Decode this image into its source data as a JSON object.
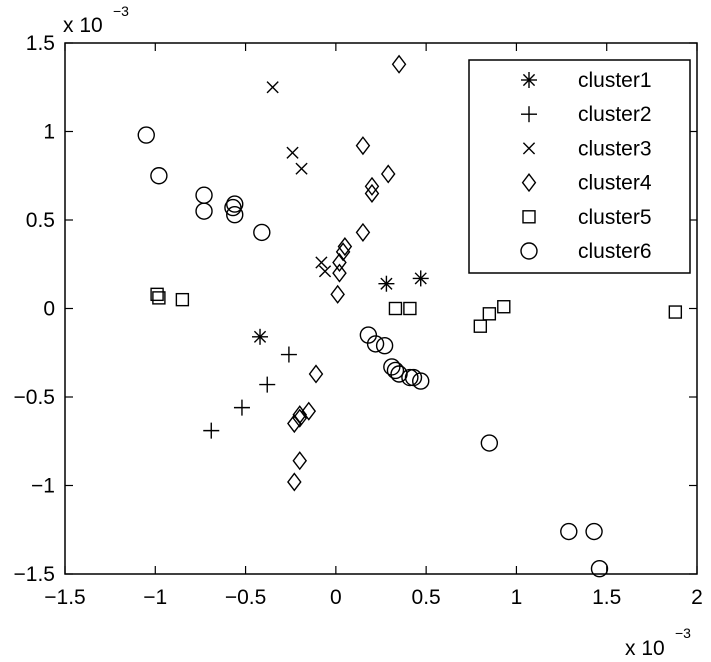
{
  "chart_data": {
    "type": "scatter",
    "title": "",
    "xlabel": "",
    "ylabel": "",
    "x_multiplier": {
      "base": "x 10",
      "exponent": "−3"
    },
    "y_multiplier": {
      "base": "x 10",
      "exponent": "−3"
    },
    "xlim": [
      -1.5,
      2
    ],
    "ylim": [
      -1.5,
      1.5
    ],
    "xticks": [
      -1.5,
      -1,
      -0.5,
      0,
      0.5,
      1,
      1.5,
      2
    ],
    "xtick_labels": [
      "−1.5",
      "−1",
      "−0.5",
      "0",
      "0.5",
      "1",
      "1.5",
      "2"
    ],
    "yticks": [
      -1.5,
      -1,
      -0.5,
      0,
      0.5,
      1,
      1.5
    ],
    "ytick_labels": [
      "−1.5",
      "−1",
      "−0.5",
      "0",
      "0.5",
      "1",
      "1.5"
    ],
    "grid": false,
    "legend_position": "top-right",
    "series": [
      {
        "name": "cluster1",
        "marker": "asterisk",
        "points": [
          [
            -0.42,
            -0.16
          ],
          [
            0.28,
            0.14
          ],
          [
            0.47,
            0.17
          ]
        ]
      },
      {
        "name": "cluster2",
        "marker": "plus",
        "points": [
          [
            -0.26,
            -0.26
          ],
          [
            -0.38,
            -0.43
          ],
          [
            -0.52,
            -0.56
          ],
          [
            -0.69,
            -0.69
          ]
        ]
      },
      {
        "name": "cluster3",
        "marker": "x",
        "points": [
          [
            -0.35,
            1.25
          ],
          [
            -0.24,
            0.88
          ],
          [
            -0.19,
            0.79
          ],
          [
            -0.08,
            0.26
          ],
          [
            -0.06,
            0.21
          ]
        ]
      },
      {
        "name": "cluster4",
        "marker": "diamond",
        "points": [
          [
            0.35,
            1.38
          ],
          [
            0.15,
            0.92
          ],
          [
            0.29,
            0.76
          ],
          [
            0.2,
            0.69
          ],
          [
            0.2,
            0.65
          ],
          [
            0.15,
            0.43
          ],
          [
            0.05,
            0.35
          ],
          [
            0.04,
            0.32
          ],
          [
            0.02,
            0.26
          ],
          [
            0.02,
            0.2
          ],
          [
            0.01,
            0.08
          ],
          [
            -0.11,
            -0.37
          ],
          [
            -0.15,
            -0.58
          ],
          [
            -0.2,
            -0.6
          ],
          [
            -0.2,
            -0.62
          ],
          [
            -0.23,
            -0.65
          ],
          [
            -0.2,
            -0.86
          ],
          [
            -0.23,
            -0.98
          ]
        ]
      },
      {
        "name": "cluster5",
        "marker": "square",
        "points": [
          [
            -0.99,
            0.08
          ],
          [
            -0.98,
            0.06
          ],
          [
            -0.85,
            0.05
          ],
          [
            0.33,
            0.0
          ],
          [
            0.41,
            0.0
          ],
          [
            0.8,
            -0.1
          ],
          [
            0.85,
            -0.03
          ],
          [
            0.93,
            0.01
          ],
          [
            1.88,
            -0.02
          ]
        ]
      },
      {
        "name": "cluster6",
        "marker": "circle",
        "points": [
          [
            -1.05,
            0.98
          ],
          [
            -0.98,
            0.75
          ],
          [
            -0.73,
            0.64
          ],
          [
            -0.73,
            0.55
          ],
          [
            -0.57,
            0.57
          ],
          [
            -0.56,
            0.53
          ],
          [
            -0.56,
            0.59
          ],
          [
            -0.41,
            0.43
          ],
          [
            0.18,
            -0.15
          ],
          [
            0.22,
            -0.2
          ],
          [
            0.27,
            -0.21
          ],
          [
            0.31,
            -0.33
          ],
          [
            0.33,
            -0.35
          ],
          [
            0.35,
            -0.37
          ],
          [
            0.41,
            -0.39
          ],
          [
            0.43,
            -0.39
          ],
          [
            0.47,
            -0.41
          ],
          [
            0.85,
            -0.76
          ],
          [
            1.29,
            -1.26
          ],
          [
            1.43,
            -1.26
          ],
          [
            1.46,
            -1.47
          ]
        ]
      }
    ]
  }
}
